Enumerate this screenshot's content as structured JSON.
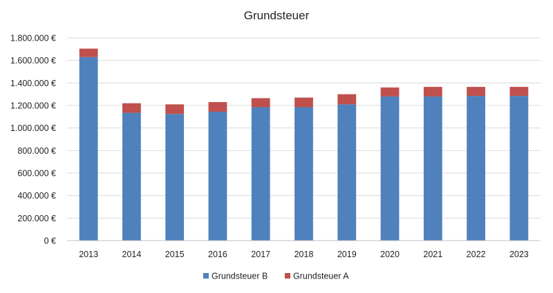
{
  "chart_data": {
    "type": "bar",
    "stacked": true,
    "title": "Grundsteuer",
    "xlabel": "",
    "ylabel": "",
    "categories": [
      "2013",
      "2014",
      "2015",
      "2016",
      "2017",
      "2018",
      "2019",
      "2020",
      "2021",
      "2022",
      "2023"
    ],
    "series": [
      {
        "name": "Grundsteuer B",
        "color": "#4f81bd",
        "values": [
          1630000,
          1135000,
          1125000,
          1145000,
          1185000,
          1185000,
          1210000,
          1280000,
          1280000,
          1285000,
          1285000
        ]
      },
      {
        "name": "Grundsteuer A",
        "color": "#c0504d",
        "values": [
          75000,
          85000,
          85000,
          85000,
          80000,
          85000,
          90000,
          80000,
          85000,
          80000,
          80000
        ]
      }
    ],
    "ylim": [
      0,
      1800000
    ],
    "yticks": [
      0,
      200000,
      400000,
      600000,
      800000,
      1000000,
      1200000,
      1400000,
      1600000,
      1800000
    ],
    "ytick_labels": [
      "0 €",
      "200.000 €",
      "400.000 €",
      "600.000 €",
      "800.000 €",
      "1.000.000 €",
      "1.200.000 €",
      "1.400.000 €",
      "1.600.000 €",
      "1.800.000 €"
    ],
    "grid": true,
    "legend": "bottom"
  }
}
